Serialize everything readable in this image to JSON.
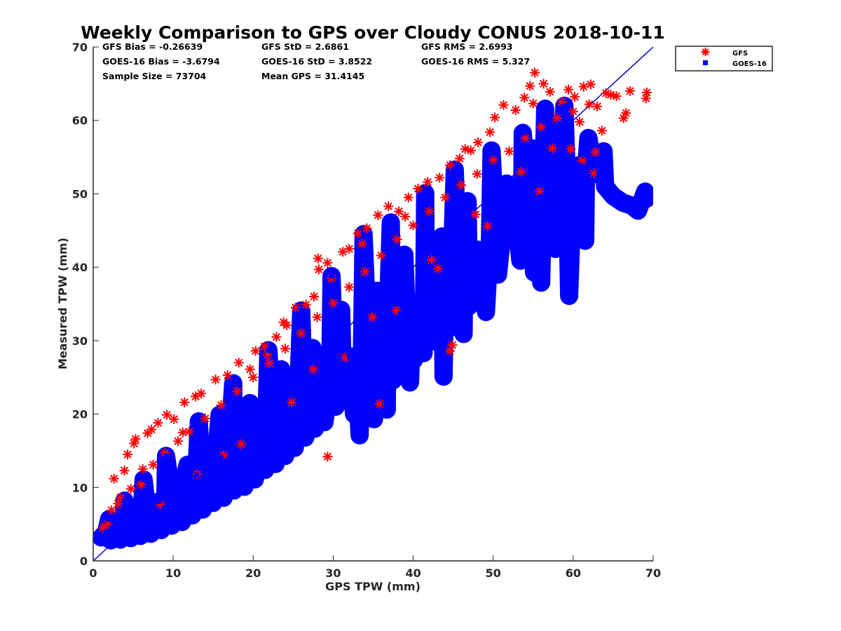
{
  "chart_data": {
    "type": "scatter",
    "title": "Weekly Comparison to GPS over Cloudy CONUS 2018-10-11",
    "xlabel": "GPS TPW (mm)",
    "ylabel": "Measured TPW (mm)",
    "xlim": [
      0,
      70
    ],
    "ylim": [
      0,
      70
    ],
    "xticks": [
      "0",
      "10",
      "20",
      "30",
      "40",
      "50",
      "60",
      "70"
    ],
    "yticks": [
      "0",
      "10",
      "20",
      "30",
      "40",
      "50",
      "60",
      "70"
    ],
    "grid": false,
    "legend_position": "outside top-right",
    "reference_line": {
      "from": [
        0,
        0
      ],
      "to": [
        70,
        70
      ],
      "color": "#0000cc"
    },
    "stats": [
      [
        "GFS Bias = -0.26639",
        "GFS StD = 2.6861",
        "GFS RMS = 2.6993"
      ],
      [
        "GOES-16 Bias = -3.6794",
        "GOES-16 StD = 3.8522",
        "GOES-16 RMS = 5.327"
      ],
      [
        "Sample Size = 73704",
        "Mean GPS = 31.4145",
        ""
      ]
    ],
    "series": [
      {
        "name": "GFS",
        "marker": "asterisk",
        "color": "#ff0000",
        "points": [
          [
            1.2,
            4.5
          ],
          [
            1.8,
            5.0
          ],
          [
            2.6,
            11.2
          ],
          [
            3.1,
            7.8
          ],
          [
            3.9,
            12.3
          ],
          [
            4.3,
            14.5
          ],
          [
            5.1,
            16.0
          ],
          [
            5.3,
            16.6
          ],
          [
            6.2,
            12.5
          ],
          [
            6.8,
            17.4
          ],
          [
            7.3,
            17.9
          ],
          [
            8.1,
            18.8
          ],
          [
            9.2,
            19.9
          ],
          [
            10.1,
            19.3
          ],
          [
            11.4,
            21.6
          ],
          [
            12.8,
            22.4
          ],
          [
            13.5,
            22.8
          ],
          [
            15.3,
            24.7
          ],
          [
            16.8,
            25.3
          ],
          [
            18.2,
            27.0
          ],
          [
            19.6,
            26.1
          ],
          [
            20.3,
            28.6
          ],
          [
            21.4,
            29.2
          ],
          [
            22.9,
            30.5
          ],
          [
            23.8,
            32.5
          ],
          [
            24.2,
            32.1
          ],
          [
            25.3,
            34.5
          ],
          [
            26.6,
            34.9
          ],
          [
            27.6,
            36.0
          ],
          [
            28.2,
            39.7
          ],
          [
            28.1,
            41.2
          ],
          [
            29.3,
            40.6
          ],
          [
            29.8,
            38.5
          ],
          [
            31.2,
            42.1
          ],
          [
            32.0,
            42.5
          ],
          [
            33.1,
            44.6
          ],
          [
            34.2,
            45.3
          ],
          [
            35.6,
            47.1
          ],
          [
            36.9,
            48.3
          ],
          [
            38.2,
            47.6
          ],
          [
            39.4,
            49.5
          ],
          [
            40.6,
            50.7
          ],
          [
            41.8,
            51.6
          ],
          [
            43.3,
            52.2
          ],
          [
            44.6,
            53.9
          ],
          [
            45.8,
            54.8
          ],
          [
            47.2,
            55.9
          ],
          [
            48.1,
            57.0
          ],
          [
            49.6,
            58.4
          ],
          [
            50.2,
            60.4
          ],
          [
            51.3,
            62.1
          ],
          [
            52.8,
            61.4
          ],
          [
            53.9,
            63.1
          ],
          [
            54.6,
            64.7
          ],
          [
            55.2,
            66.5
          ],
          [
            56.3,
            65.0
          ],
          [
            57.1,
            63.9
          ],
          [
            58.6,
            62.5
          ],
          [
            59.4,
            64.2
          ],
          [
            60.2,
            63.2
          ],
          [
            61.3,
            64.6
          ],
          [
            62.2,
            64.9
          ],
          [
            63.0,
            61.9
          ],
          [
            63.6,
            58.6
          ],
          [
            62.8,
            55.7
          ],
          [
            64.1,
            63.7
          ],
          [
            64.7,
            63.5
          ],
          [
            65.4,
            63.3
          ],
          [
            66.3,
            60.3
          ],
          [
            66.6,
            61.0
          ],
          [
            67.1,
            64.0
          ],
          [
            69.2,
            63.8
          ],
          [
            69.1,
            63.0
          ],
          [
            62.6,
            52.8
          ],
          [
            61.1,
            54.5
          ],
          [
            44.6,
            28.6
          ],
          [
            44.9,
            29.4
          ],
          [
            35.8,
            21.4
          ],
          [
            29.3,
            14.2
          ],
          [
            2.3,
            6.9
          ],
          [
            3.4,
            8.6
          ],
          [
            4.7,
            9.8
          ],
          [
            6.0,
            10.4
          ],
          [
            7.5,
            13.1
          ],
          [
            9.0,
            14.7
          ],
          [
            10.6,
            16.3
          ],
          [
            12.0,
            17.6
          ],
          [
            14.0,
            19.4
          ],
          [
            16.0,
            21.2
          ],
          [
            18.0,
            23.1
          ],
          [
            20.0,
            25.0
          ],
          [
            22.0,
            26.9
          ],
          [
            24.0,
            28.9
          ],
          [
            26.0,
            31.0
          ],
          [
            28.0,
            33.2
          ],
          [
            30.0,
            35.1
          ],
          [
            32.0,
            37.3
          ],
          [
            34.0,
            39.4
          ],
          [
            36.0,
            41.6
          ],
          [
            38.0,
            43.8
          ],
          [
            40.0,
            45.7
          ],
          [
            42.0,
            47.6
          ],
          [
            44.0,
            49.5
          ],
          [
            46.0,
            51.2
          ],
          [
            48.0,
            52.7
          ],
          [
            50.0,
            54.6
          ],
          [
            52.0,
            55.8
          ],
          [
            54.0,
            57.6
          ],
          [
            56.0,
            59.1
          ],
          [
            58.0,
            60.3
          ],
          [
            60.0,
            61.2
          ],
          [
            62.0,
            62.2
          ],
          [
            13.0,
            11.8
          ],
          [
            18.5,
            15.9
          ],
          [
            24.8,
            21.6
          ],
          [
            31.5,
            27.7
          ],
          [
            37.9,
            34.1
          ],
          [
            43.1,
            39.8
          ],
          [
            49.3,
            45.6
          ],
          [
            55.8,
            50.3
          ],
          [
            59.7,
            56.1
          ],
          [
            8.4,
            7.7
          ],
          [
            16.3,
            14.4
          ],
          [
            27.5,
            26.1
          ],
          [
            34.9,
            33.2
          ],
          [
            42.3,
            41.0
          ],
          [
            47.8,
            47.2
          ],
          [
            53.5,
            53.0
          ],
          [
            57.4,
            56.2
          ],
          [
            60.8,
            59.8
          ],
          [
            39.0,
            46.9
          ],
          [
            33.6,
            43.2
          ],
          [
            21.8,
            28.1
          ],
          [
            11.2,
            17.5
          ],
          [
            46.5,
            56.1
          ],
          [
            55.0,
            62.3
          ]
        ]
      },
      {
        "name": "GOES-16",
        "marker": "square",
        "color": "#0000ff",
        "points": [
          [
            1.0,
            3.2
          ],
          [
            1.6,
            3.9
          ],
          [
            2.4,
            4.6
          ],
          [
            3.0,
            5.1
          ],
          [
            3.8,
            4.4
          ],
          [
            4.5,
            5.8
          ],
          [
            5.2,
            6.3
          ],
          [
            6.0,
            5.4
          ],
          [
            6.7,
            7.2
          ],
          [
            7.4,
            6.5
          ],
          [
            8.2,
            8.1
          ],
          [
            9.0,
            7.3
          ],
          [
            9.8,
            9.2
          ],
          [
            10.5,
            8.4
          ],
          [
            11.3,
            10.6
          ],
          [
            12.1,
            9.5
          ],
          [
            12.9,
            11.7
          ],
          [
            13.6,
            10.9
          ],
          [
            14.4,
            12.8
          ],
          [
            15.2,
            12.0
          ],
          [
            16.0,
            14.1
          ],
          [
            16.8,
            13.2
          ],
          [
            17.6,
            15.4
          ],
          [
            18.4,
            14.6
          ],
          [
            19.2,
            16.7
          ],
          [
            20.0,
            15.8
          ],
          [
            20.8,
            18.1
          ],
          [
            21.6,
            17.2
          ],
          [
            22.4,
            19.4
          ],
          [
            23.2,
            18.5
          ],
          [
            24.0,
            20.8
          ],
          [
            24.8,
            19.9
          ],
          [
            25.6,
            22.2
          ],
          [
            26.4,
            21.3
          ],
          [
            27.2,
            23.6
          ],
          [
            28.0,
            22.7
          ],
          [
            28.8,
            25.0
          ],
          [
            29.6,
            24.1
          ],
          [
            30.4,
            26.4
          ],
          [
            31.2,
            25.5
          ],
          [
            32.0,
            27.9
          ],
          [
            32.8,
            27.0
          ],
          [
            33.6,
            29.3
          ],
          [
            34.4,
            28.4
          ],
          [
            35.2,
            30.8
          ],
          [
            36.0,
            29.9
          ],
          [
            36.8,
            32.2
          ],
          [
            37.6,
            31.4
          ],
          [
            38.4,
            33.7
          ],
          [
            39.2,
            32.8
          ],
          [
            40.0,
            35.1
          ],
          [
            40.8,
            34.3
          ],
          [
            41.6,
            36.6
          ],
          [
            42.4,
            35.7
          ],
          [
            43.2,
            38.0
          ],
          [
            44.0,
            37.2
          ],
          [
            44.8,
            39.5
          ],
          [
            45.6,
            38.6
          ],
          [
            46.4,
            40.9
          ],
          [
            47.2,
            40.1
          ],
          [
            48.0,
            42.4
          ],
          [
            48.8,
            41.5
          ],
          [
            49.6,
            43.8
          ],
          [
            50.4,
            43.0
          ],
          [
            51.2,
            45.3
          ],
          [
            52.0,
            44.4
          ],
          [
            52.8,
            46.7
          ],
          [
            53.6,
            45.9
          ],
          [
            54.4,
            48.2
          ],
          [
            55.2,
            47.3
          ],
          [
            56.0,
            49.6
          ],
          [
            56.8,
            48.8
          ],
          [
            57.6,
            51.1
          ],
          [
            58.4,
            50.2
          ],
          [
            59.2,
            52.5
          ],
          [
            60.0,
            51.7
          ],
          [
            60.8,
            53.9
          ],
          [
            61.6,
            53.1
          ],
          [
            62.4,
            54.4
          ],
          [
            63.2,
            52.6
          ],
          [
            64.0,
            51.0
          ],
          [
            65.0,
            49.7
          ],
          [
            66.2,
            48.8
          ],
          [
            67.3,
            48.4
          ],
          [
            68.1,
            47.7
          ],
          [
            69.0,
            50.3
          ],
          [
            69.1,
            49.3
          ],
          [
            61.5,
            43.6
          ],
          [
            59.5,
            36.1
          ],
          [
            56.0,
            37.9
          ],
          [
            55.1,
            39.3
          ],
          [
            53.4,
            40.9
          ],
          [
            52.3,
            44.1
          ],
          [
            50.6,
            39.0
          ],
          [
            48.4,
            36.6
          ],
          [
            47.0,
            34.7
          ],
          [
            45.6,
            33.1
          ],
          [
            44.1,
            31.2
          ],
          [
            42.7,
            29.9
          ],
          [
            41.3,
            28.3
          ],
          [
            40.1,
            27.4
          ],
          [
            38.8,
            26.1
          ],
          [
            37.5,
            24.6
          ],
          [
            35.9,
            23.0
          ],
          [
            35.1,
            19.3
          ],
          [
            36.7,
            20.6
          ],
          [
            33.3,
            17.1
          ],
          [
            31.8,
            22.3
          ],
          [
            30.3,
            21.0
          ],
          [
            28.9,
            18.9
          ],
          [
            27.7,
            18.0
          ],
          [
            26.5,
            16.8
          ],
          [
            25.2,
            15.4
          ],
          [
            24.0,
            14.3
          ],
          [
            22.8,
            13.2
          ],
          [
            21.5,
            12.4
          ],
          [
            20.2,
            11.1
          ],
          [
            18.9,
            10.1
          ],
          [
            17.6,
            9.6
          ],
          [
            16.3,
            8.6
          ],
          [
            15.0,
            7.9
          ],
          [
            13.7,
            7.0
          ],
          [
            12.4,
            6.2
          ],
          [
            11.1,
            5.3
          ],
          [
            9.8,
            4.8
          ],
          [
            8.5,
            4.2
          ],
          [
            7.2,
            3.7
          ],
          [
            5.9,
            3.4
          ],
          [
            4.7,
            3.1
          ],
          [
            3.4,
            2.9
          ],
          [
            2.2,
            2.8
          ],
          [
            33.8,
            44.5
          ],
          [
            37.2,
            46.1
          ],
          [
            41.5,
            50.1
          ],
          [
            45.2,
            53.3
          ],
          [
            49.8,
            55.9
          ],
          [
            53.7,
            58.3
          ],
          [
            56.5,
            61.6
          ],
          [
            58.9,
            62.0
          ],
          [
            29.8,
            38.8
          ],
          [
            26.0,
            34.1
          ],
          [
            21.9,
            28.7
          ],
          [
            17.5,
            24.2
          ],
          [
            13.2,
            19.0
          ],
          [
            9.1,
            14.3
          ],
          [
            6.3,
            11.1
          ],
          [
            3.9,
            8.2
          ],
          [
            2.0,
            5.7
          ],
          [
            15.8,
            19.9
          ],
          [
            23.5,
            26.1
          ],
          [
            31.0,
            34.2
          ],
          [
            38.9,
            41.7
          ],
          [
            46.8,
            49.0
          ],
          [
            54.9,
            56.2
          ],
          [
            61.9,
            57.6
          ],
          [
            63.8,
            55.8
          ],
          [
            11.8,
            13.1
          ],
          [
            19.6,
            21.5
          ],
          [
            27.4,
            29.0
          ],
          [
            35.5,
            36.8
          ],
          [
            43.6,
            44.2
          ],
          [
            51.7,
            51.4
          ],
          [
            58.1,
            55.0
          ],
          [
            60.6,
            47.0
          ],
          [
            57.8,
            42.5
          ],
          [
            49.1,
            33.9
          ],
          [
            43.8,
            25.1
          ],
          [
            39.6,
            24.3
          ],
          [
            46.3,
            30.9
          ],
          [
            32.6,
            20.0
          ],
          [
            37.9,
            28.9
          ],
          [
            34.7,
            26.7
          ],
          [
            27.0,
            21.8
          ],
          [
            24.6,
            18.4
          ],
          [
            20.7,
            15.0
          ],
          [
            14.2,
            10.5
          ]
        ]
      }
    ]
  }
}
